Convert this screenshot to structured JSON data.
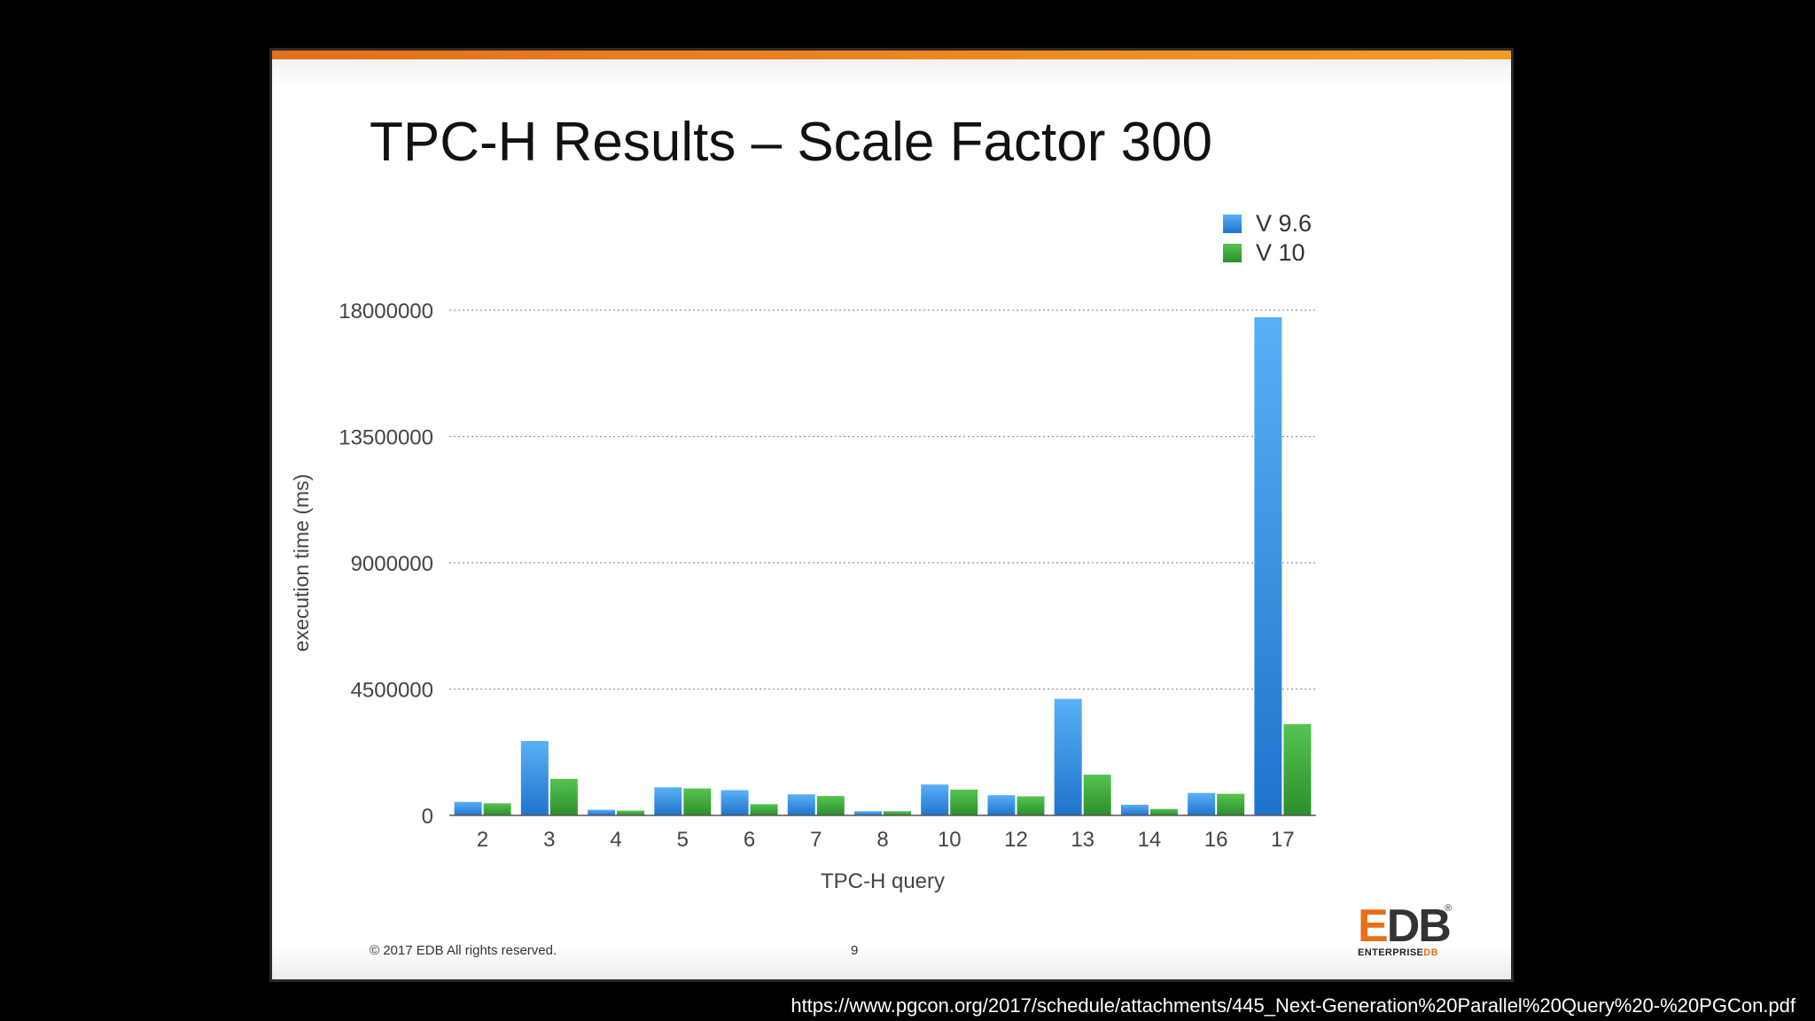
{
  "slide": {
    "title": "TPC-H Results – Scale Factor 300",
    "copyright": "© 2017 EDB All rights reserved.",
    "page_number": "9",
    "logo_text": "EDB",
    "logo_subtitle": "ENTERPRISE",
    "logo_subtitle_accent": "DB",
    "logo_reg": "®"
  },
  "source_url": "https://www.pgcon.org/2017/schedule/attachments/445_Next-Generation%20Parallel%20Query%20-%20PGCon.pdf",
  "colors": {
    "series_v96": "#2d8ce0",
    "series_v10": "#3aa83a",
    "brand_orange": "#e8701a"
  },
  "chart_data": {
    "type": "bar",
    "title": "",
    "xlabel": "TPC-H query",
    "ylabel": "execution time (ms)",
    "categories": [
      "2",
      "3",
      "4",
      "5",
      "6",
      "7",
      "8",
      "10",
      "12",
      "13",
      "14",
      "16",
      "17"
    ],
    "series": [
      {
        "name": "V 9.6",
        "color": "#2d8ce0",
        "values": [
          480000,
          2650000,
          200000,
          1000000,
          900000,
          750000,
          150000,
          1100000,
          720000,
          4150000,
          380000,
          800000,
          17750000
        ]
      },
      {
        "name": "V 10",
        "color": "#3aa83a",
        "values": [
          430000,
          1300000,
          170000,
          960000,
          400000,
          690000,
          150000,
          920000,
          680000,
          1450000,
          230000,
          770000,
          3250000
        ]
      }
    ],
    "yticks": [
      "0",
      "4500000",
      "9000000",
      "13500000",
      "18000000"
    ],
    "ylim": [
      0,
      18000000
    ],
    "grid": true,
    "legend": "top-right"
  }
}
